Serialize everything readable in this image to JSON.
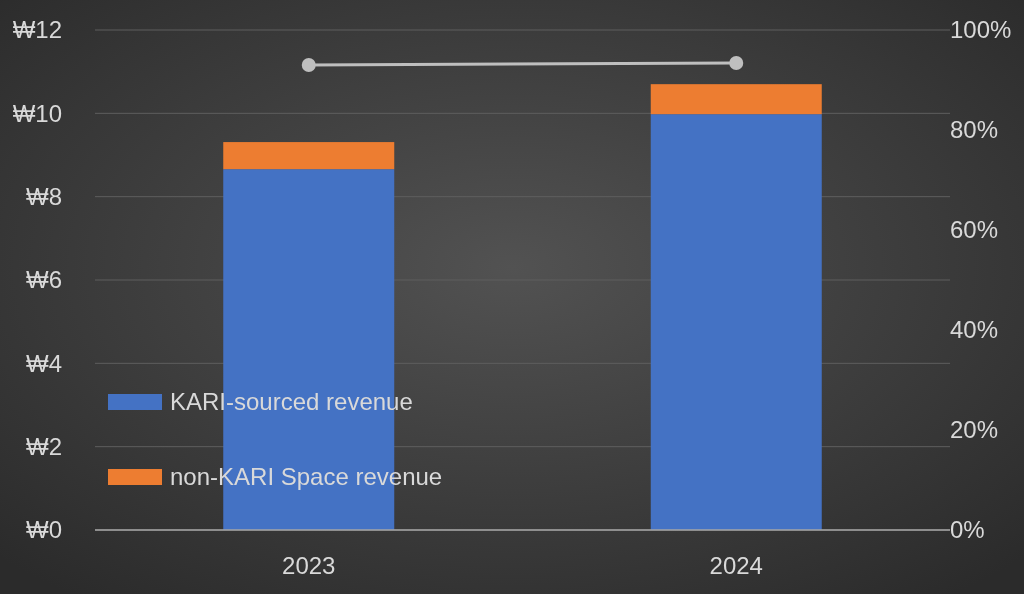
{
  "chart_data": {
    "type": "bar",
    "stacked": true,
    "categories": [
      "2023",
      "2024"
    ],
    "series": [
      {
        "name": "KARI-sourced revenue",
        "color": "#4472c4",
        "values": [
          8.66,
          9.98
        ]
      },
      {
        "name": "non-KARI Space revenue",
        "color": "#ed7d31",
        "values": [
          0.65,
          0.72
        ]
      },
      {
        "type": "line",
        "axis": "y2",
        "color": "#bfbfbf",
        "marker": "circle",
        "values": [
          93,
          93.4
        ]
      }
    ],
    "ylim": [
      0,
      12
    ],
    "yticks": [
      {
        "value": 0,
        "label": "₩0"
      },
      {
        "value": 2,
        "label": "₩2"
      },
      {
        "value": 4,
        "label": "₩4"
      },
      {
        "value": 6,
        "label": "₩6"
      },
      {
        "value": 8,
        "label": "₩8"
      },
      {
        "value": 10,
        "label": "₩10"
      },
      {
        "value": 12,
        "label": "₩12"
      }
    ],
    "y2lim": [
      0,
      100
    ],
    "y2ticks": [
      {
        "value": 0,
        "label": "0%"
      },
      {
        "value": 20,
        "label": "20%"
      },
      {
        "value": 40,
        "label": "40%"
      },
      {
        "value": 60,
        "label": "60%"
      },
      {
        "value": 80,
        "label": "80%"
      },
      {
        "value": 100,
        "label": "100%"
      }
    ],
    "grid": "y",
    "legend": "bottom left"
  }
}
